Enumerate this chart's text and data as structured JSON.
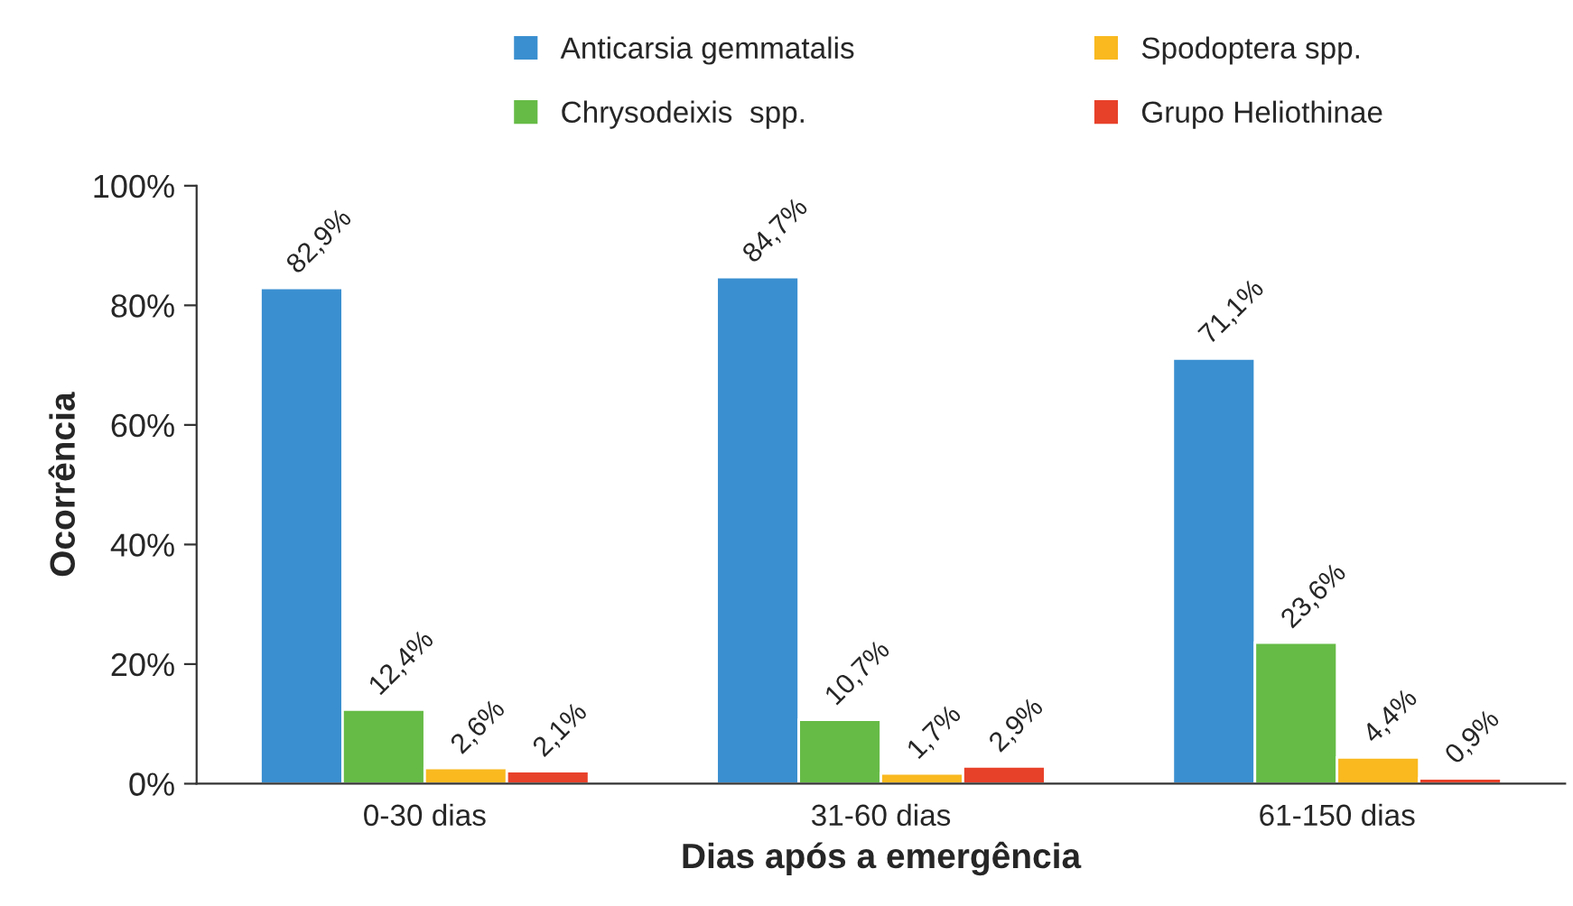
{
  "chart_data": {
    "type": "bar",
    "xlabel": "Dias após a emergência",
    "ylabel": "Ocorrência",
    "categories": [
      "0-30 dias",
      "31-60 dias",
      "61-150 dias"
    ],
    "series": [
      {
        "name": "Anticarsia gemmatalis",
        "color": "#3a8fd0",
        "values": [
          82.9,
          84.7,
          71.1
        ],
        "value_labels": [
          "82,9%",
          "84,7%",
          "71,1%"
        ]
      },
      {
        "name": "Chrysodeixis  spp.",
        "color": "#66bb46",
        "values": [
          12.4,
          10.7,
          23.6
        ],
        "value_labels": [
          "12,4%",
          "10,7%",
          "23,6%"
        ]
      },
      {
        "name": "Spodoptera spp.",
        "color": "#f9b91f",
        "values": [
          2.6,
          1.7,
          4.4
        ],
        "value_labels": [
          "2,6%",
          "1,7%",
          "4,4%"
        ]
      },
      {
        "name": "Grupo Heliothinae",
        "color": "#e8412a",
        "values": [
          2.1,
          2.9,
          0.9
        ],
        "value_labels": [
          "2,1%",
          "2,9%",
          "0,9%"
        ]
      }
    ],
    "ylim": [
      0,
      100
    ],
    "yticks": [
      {
        "value": 0,
        "label": "0%"
      },
      {
        "value": 20,
        "label": "20%"
      },
      {
        "value": 40,
        "label": "40%"
      },
      {
        "value": 60,
        "label": "60%"
      },
      {
        "value": 80,
        "label": "80%"
      },
      {
        "value": 100,
        "label": "100%"
      }
    ],
    "grid": false,
    "legend": "top"
  }
}
